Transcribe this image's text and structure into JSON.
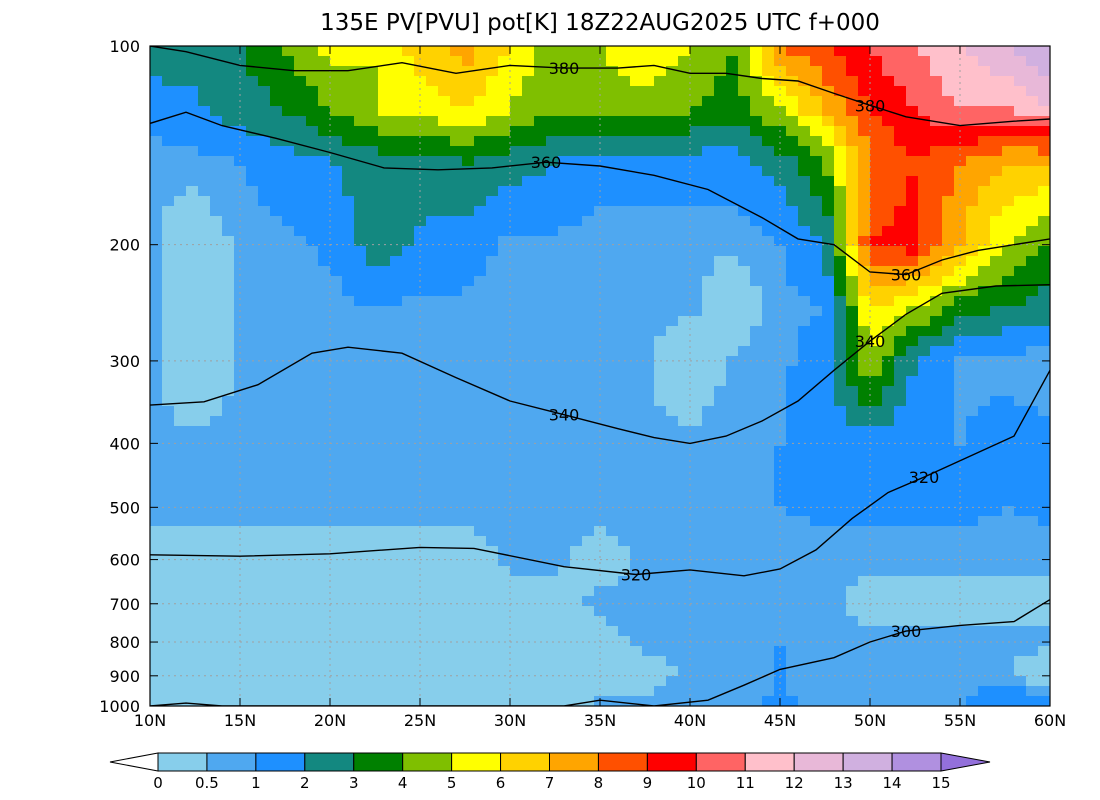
{
  "chart_data": {
    "type": "heatmap",
    "title": "135E PV[PVU] pot[K] 18Z22AUG2025 UTC f+000",
    "x_axis": {
      "ticks": [
        10,
        15,
        20,
        25,
        30,
        35,
        40,
        45,
        50,
        55,
        60
      ],
      "tick_labels": [
        "10N",
        "15N",
        "20N",
        "25N",
        "30N",
        "35N",
        "40N",
        "45N",
        "50N",
        "55N",
        "60N"
      ],
      "range": [
        10,
        60
      ]
    },
    "y_axis": {
      "scale": "log",
      "inverted": true,
      "ticks": [
        100,
        200,
        300,
        400,
        500,
        600,
        700,
        800,
        900,
        1000
      ],
      "tick_labels": [
        "100",
        "200",
        "300",
        "400",
        "500",
        "600",
        "700",
        "800",
        "900",
        "1000"
      ],
      "range": [
        100,
        1000
      ]
    },
    "grid": true,
    "colorbar": {
      "levels": [
        0,
        0.5,
        1,
        2,
        3,
        4,
        5,
        6,
        7,
        8,
        9,
        10,
        11,
        12,
        13,
        14,
        15
      ],
      "labels": [
        "0",
        "0.5",
        "1",
        "2",
        "3",
        "4",
        "5",
        "6",
        "7",
        "8",
        "9",
        "10",
        "11",
        "12",
        "13",
        "14",
        "15"
      ],
      "colors": [
        "#87ceeb",
        "#4fa8f0",
        "#1e90ff",
        "#138880",
        "#008000",
        "#7fbf00",
        "#ffff00",
        "#ffd200",
        "#ffa500",
        "#ff5000",
        "#ff0000",
        "#ff6464",
        "#ffc0cb",
        "#e8b8d8",
        "#d0b0e0",
        "#b090e0"
      ],
      "under_color": "#ffffff",
      "over_color": "#9370db"
    },
    "pv_field": {
      "lats": [
        10,
        12.5,
        15,
        17.5,
        20,
        22.5,
        25,
        27.5,
        30,
        32.5,
        35,
        37.5,
        40,
        42.5,
        45,
        47.5,
        50,
        52.5,
        55,
        57.5,
        60
      ],
      "levels": [
        100,
        125,
        150,
        200,
        250,
        300,
        400,
        500,
        600,
        700,
        800,
        900,
        1000
      ],
      "values": [
        [
          2.5,
          2.5,
          3,
          4,
          5.5,
          5,
          6.5,
          7.5,
          6,
          4.5,
          5,
          6,
          5,
          4,
          8,
          9,
          10,
          11,
          12,
          13,
          14
        ],
        [
          1.5,
          1.8,
          2.5,
          3,
          4,
          5,
          5.5,
          6,
          5,
          4,
          4.5,
          4.5,
          4,
          3.5,
          5,
          7,
          9,
          10,
          11,
          11,
          12
        ],
        [
          0.6,
          0.7,
          1,
          1.5,
          2,
          2.5,
          2.5,
          3,
          2.5,
          2,
          1.5,
          1.5,
          1.5,
          1.5,
          2.5,
          4,
          8,
          9,
          8,
          7,
          7
        ],
        [
          0.6,
          0,
          0.6,
          0.8,
          1.2,
          2.5,
          1.8,
          1.5,
          0.8,
          0.8,
          0.6,
          0.6,
          0.6,
          0.6,
          1,
          2,
          9,
          9.5,
          7,
          5,
          4
        ],
        [
          0.6,
          0,
          0.6,
          0.6,
          0.6,
          1,
          0.8,
          0.8,
          0.6,
          0.6,
          0.6,
          0.6,
          0.6,
          0,
          0.8,
          1,
          6,
          5,
          3.5,
          3,
          2.5
        ],
        [
          0.6,
          0,
          0.6,
          0.6,
          0.6,
          0.6,
          0.6,
          0.6,
          0.6,
          0.6,
          0.6,
          0.6,
          0,
          0.6,
          0.8,
          1.5,
          5,
          2,
          0.8,
          0.6,
          0.6
        ],
        [
          0.6,
          0.6,
          0.6,
          0.6,
          0.6,
          0.6,
          0.6,
          0.6,
          0.6,
          0.6,
          0.6,
          0.6,
          0.6,
          0.8,
          1,
          1.5,
          1.5,
          1.2,
          1,
          1.5,
          1.2
        ],
        [
          0.6,
          0.6,
          0.6,
          0.6,
          0.6,
          0.6,
          0.6,
          0.6,
          0.6,
          0.6,
          0.6,
          0.6,
          0.6,
          0.8,
          1,
          1.2,
          1.2,
          1.2,
          1.2,
          1,
          1.2
        ],
        [
          0.3,
          0.3,
          0.3,
          0.3,
          0.3,
          0.3,
          0.3,
          0.3,
          0.6,
          0.6,
          0.3,
          0.6,
          0.6,
          0.8,
          0.6,
          0.6,
          0.6,
          0.6,
          0.6,
          0.6,
          0.6
        ],
        [
          0.3,
          0.3,
          0.3,
          0.3,
          0.3,
          0.3,
          0.3,
          0.3,
          0.3,
          0.3,
          0.6,
          0.6,
          0.6,
          0.8,
          0.6,
          0.6,
          0.3,
          0.3,
          0.3,
          0.3,
          0.3
        ],
        [
          0.3,
          0.3,
          0.3,
          0.3,
          0.3,
          0.3,
          0.3,
          0.3,
          0.3,
          0.3,
          0.3,
          0.6,
          0.6,
          0.8,
          1,
          0.6,
          0.6,
          0.6,
          0.6,
          0.6,
          0.6
        ],
        [
          0.3,
          0.3,
          0.3,
          0.3,
          0.3,
          0.3,
          0.3,
          0.3,
          0.3,
          0.3,
          0.3,
          0.3,
          0.6,
          0.6,
          1,
          0.6,
          0.6,
          0.6,
          0.6,
          0.6,
          0
        ],
        [
          0.3,
          0.3,
          0.3,
          0.3,
          0.3,
          0.3,
          0.3,
          0.3,
          0.3,
          0.3,
          0.6,
          0.6,
          0.6,
          0.6,
          1.2,
          0.6,
          0.6,
          0.6,
          1,
          2,
          1.5
        ]
      ]
    },
    "contours": [
      {
        "value": 300,
        "label": "300",
        "points": [
          [
            10,
            1000
          ],
          [
            12,
            990
          ],
          [
            14,
            1000
          ],
          [
            33,
            1000
          ],
          [
            35,
            980
          ],
          [
            38,
            1000
          ],
          [
            41,
            980
          ],
          [
            43,
            930
          ],
          [
            45,
            880
          ],
          [
            48,
            845
          ],
          [
            50,
            800
          ],
          [
            52,
            770
          ],
          [
            55,
            755
          ],
          [
            58,
            745
          ],
          [
            60,
            690
          ]
        ]
      },
      {
        "value": 320,
        "label": "320",
        "points": [
          [
            10,
            590
          ],
          [
            15,
            593
          ],
          [
            20,
            588
          ],
          [
            25,
            575
          ],
          [
            28,
            577
          ],
          [
            33,
            615
          ],
          [
            37,
            632
          ],
          [
            40,
            622
          ],
          [
            43,
            635
          ],
          [
            45,
            620
          ],
          [
            47,
            580
          ],
          [
            49,
            520
          ],
          [
            51,
            475
          ],
          [
            53,
            450
          ],
          [
            55,
            425
          ],
          [
            58,
            390
          ],
          [
            60,
            310
          ]
        ]
      },
      {
        "value": 340,
        "label": "340",
        "points": [
          [
            10,
            350
          ],
          [
            13,
            346
          ],
          [
            16,
            326
          ],
          [
            19,
            292
          ],
          [
            21,
            286
          ],
          [
            24,
            292
          ],
          [
            27,
            318
          ],
          [
            30,
            345
          ],
          [
            33,
            362
          ],
          [
            36,
            380
          ],
          [
            38,
            392
          ],
          [
            40,
            400
          ],
          [
            42,
            390
          ],
          [
            44,
            370
          ],
          [
            46,
            345
          ],
          [
            48,
            310
          ],
          [
            50,
            280
          ],
          [
            52,
            255
          ],
          [
            54,
            237
          ],
          [
            57,
            231
          ],
          [
            60,
            230
          ]
        ]
      },
      {
        "value": 360,
        "label": "360",
        "points": [
          [
            10,
            131
          ],
          [
            12,
            126
          ],
          [
            14,
            132
          ],
          [
            17,
            138
          ],
          [
            20,
            145
          ],
          [
            23,
            153
          ],
          [
            26,
            154
          ],
          [
            29,
            153
          ],
          [
            32,
            150
          ],
          [
            35,
            152
          ],
          [
            38,
            157
          ],
          [
            41,
            165
          ],
          [
            44,
            182
          ],
          [
            46,
            196
          ],
          [
            48,
            200
          ],
          [
            50,
            220
          ],
          [
            52,
            222
          ],
          [
            54,
            211
          ],
          [
            56,
            204
          ],
          [
            58,
            200
          ],
          [
            60,
            196
          ]
        ]
      },
      {
        "value": 380,
        "label": "380",
        "points": [
          [
            10,
            100
          ],
          [
            12,
            102
          ],
          [
            15,
            107
          ],
          [
            18,
            109
          ],
          [
            21,
            109
          ],
          [
            24,
            106
          ],
          [
            27,
            110
          ],
          [
            30,
            107
          ],
          [
            33,
            108
          ],
          [
            36,
            108
          ],
          [
            38,
            107
          ],
          [
            40,
            110
          ],
          [
            42,
            110
          ],
          [
            44,
            112
          ],
          [
            46,
            113
          ],
          [
            48,
            118
          ],
          [
            50,
            123
          ],
          [
            52,
            128
          ],
          [
            55,
            132
          ],
          [
            58,
            130
          ],
          [
            60,
            129
          ]
        ]
      }
    ]
  }
}
